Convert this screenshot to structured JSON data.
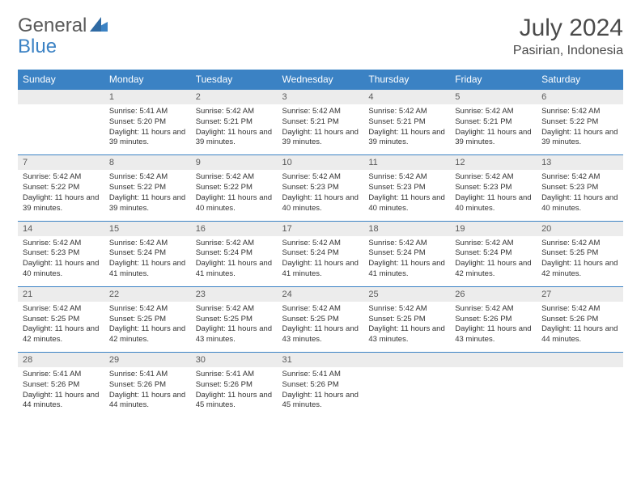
{
  "logo": {
    "part1": "General",
    "part2": "Blue"
  },
  "title": "July 2024",
  "location": "Pasirian, Indonesia",
  "colors": {
    "header_bg": "#3b82c4",
    "header_text": "#ffffff",
    "daynum_bg": "#ececec",
    "row_border": "#3b82c4",
    "logo_blue": "#3b82c4",
    "logo_grey": "#5a5a5a"
  },
  "day_headers": [
    "Sunday",
    "Monday",
    "Tuesday",
    "Wednesday",
    "Thursday",
    "Friday",
    "Saturday"
  ],
  "weeks": [
    [
      {
        "n": "",
        "sr": "",
        "ss": "",
        "dl": ""
      },
      {
        "n": "1",
        "sr": "Sunrise: 5:41 AM",
        "ss": "Sunset: 5:20 PM",
        "dl": "Daylight: 11 hours and 39 minutes."
      },
      {
        "n": "2",
        "sr": "Sunrise: 5:42 AM",
        "ss": "Sunset: 5:21 PM",
        "dl": "Daylight: 11 hours and 39 minutes."
      },
      {
        "n": "3",
        "sr": "Sunrise: 5:42 AM",
        "ss": "Sunset: 5:21 PM",
        "dl": "Daylight: 11 hours and 39 minutes."
      },
      {
        "n": "4",
        "sr": "Sunrise: 5:42 AM",
        "ss": "Sunset: 5:21 PM",
        "dl": "Daylight: 11 hours and 39 minutes."
      },
      {
        "n": "5",
        "sr": "Sunrise: 5:42 AM",
        "ss": "Sunset: 5:21 PM",
        "dl": "Daylight: 11 hours and 39 minutes."
      },
      {
        "n": "6",
        "sr": "Sunrise: 5:42 AM",
        "ss": "Sunset: 5:22 PM",
        "dl": "Daylight: 11 hours and 39 minutes."
      }
    ],
    [
      {
        "n": "7",
        "sr": "Sunrise: 5:42 AM",
        "ss": "Sunset: 5:22 PM",
        "dl": "Daylight: 11 hours and 39 minutes."
      },
      {
        "n": "8",
        "sr": "Sunrise: 5:42 AM",
        "ss": "Sunset: 5:22 PM",
        "dl": "Daylight: 11 hours and 39 minutes."
      },
      {
        "n": "9",
        "sr": "Sunrise: 5:42 AM",
        "ss": "Sunset: 5:22 PM",
        "dl": "Daylight: 11 hours and 40 minutes."
      },
      {
        "n": "10",
        "sr": "Sunrise: 5:42 AM",
        "ss": "Sunset: 5:23 PM",
        "dl": "Daylight: 11 hours and 40 minutes."
      },
      {
        "n": "11",
        "sr": "Sunrise: 5:42 AM",
        "ss": "Sunset: 5:23 PM",
        "dl": "Daylight: 11 hours and 40 minutes."
      },
      {
        "n": "12",
        "sr": "Sunrise: 5:42 AM",
        "ss": "Sunset: 5:23 PM",
        "dl": "Daylight: 11 hours and 40 minutes."
      },
      {
        "n": "13",
        "sr": "Sunrise: 5:42 AM",
        "ss": "Sunset: 5:23 PM",
        "dl": "Daylight: 11 hours and 40 minutes."
      }
    ],
    [
      {
        "n": "14",
        "sr": "Sunrise: 5:42 AM",
        "ss": "Sunset: 5:23 PM",
        "dl": "Daylight: 11 hours and 40 minutes."
      },
      {
        "n": "15",
        "sr": "Sunrise: 5:42 AM",
        "ss": "Sunset: 5:24 PM",
        "dl": "Daylight: 11 hours and 41 minutes."
      },
      {
        "n": "16",
        "sr": "Sunrise: 5:42 AM",
        "ss": "Sunset: 5:24 PM",
        "dl": "Daylight: 11 hours and 41 minutes."
      },
      {
        "n": "17",
        "sr": "Sunrise: 5:42 AM",
        "ss": "Sunset: 5:24 PM",
        "dl": "Daylight: 11 hours and 41 minutes."
      },
      {
        "n": "18",
        "sr": "Sunrise: 5:42 AM",
        "ss": "Sunset: 5:24 PM",
        "dl": "Daylight: 11 hours and 41 minutes."
      },
      {
        "n": "19",
        "sr": "Sunrise: 5:42 AM",
        "ss": "Sunset: 5:24 PM",
        "dl": "Daylight: 11 hours and 42 minutes."
      },
      {
        "n": "20",
        "sr": "Sunrise: 5:42 AM",
        "ss": "Sunset: 5:25 PM",
        "dl": "Daylight: 11 hours and 42 minutes."
      }
    ],
    [
      {
        "n": "21",
        "sr": "Sunrise: 5:42 AM",
        "ss": "Sunset: 5:25 PM",
        "dl": "Daylight: 11 hours and 42 minutes."
      },
      {
        "n": "22",
        "sr": "Sunrise: 5:42 AM",
        "ss": "Sunset: 5:25 PM",
        "dl": "Daylight: 11 hours and 42 minutes."
      },
      {
        "n": "23",
        "sr": "Sunrise: 5:42 AM",
        "ss": "Sunset: 5:25 PM",
        "dl": "Daylight: 11 hours and 43 minutes."
      },
      {
        "n": "24",
        "sr": "Sunrise: 5:42 AM",
        "ss": "Sunset: 5:25 PM",
        "dl": "Daylight: 11 hours and 43 minutes."
      },
      {
        "n": "25",
        "sr": "Sunrise: 5:42 AM",
        "ss": "Sunset: 5:25 PM",
        "dl": "Daylight: 11 hours and 43 minutes."
      },
      {
        "n": "26",
        "sr": "Sunrise: 5:42 AM",
        "ss": "Sunset: 5:26 PM",
        "dl": "Daylight: 11 hours and 43 minutes."
      },
      {
        "n": "27",
        "sr": "Sunrise: 5:42 AM",
        "ss": "Sunset: 5:26 PM",
        "dl": "Daylight: 11 hours and 44 minutes."
      }
    ],
    [
      {
        "n": "28",
        "sr": "Sunrise: 5:41 AM",
        "ss": "Sunset: 5:26 PM",
        "dl": "Daylight: 11 hours and 44 minutes."
      },
      {
        "n": "29",
        "sr": "Sunrise: 5:41 AM",
        "ss": "Sunset: 5:26 PM",
        "dl": "Daylight: 11 hours and 44 minutes."
      },
      {
        "n": "30",
        "sr": "Sunrise: 5:41 AM",
        "ss": "Sunset: 5:26 PM",
        "dl": "Daylight: 11 hours and 45 minutes."
      },
      {
        "n": "31",
        "sr": "Sunrise: 5:41 AM",
        "ss": "Sunset: 5:26 PM",
        "dl": "Daylight: 11 hours and 45 minutes."
      },
      {
        "n": "",
        "sr": "",
        "ss": "",
        "dl": ""
      },
      {
        "n": "",
        "sr": "",
        "ss": "",
        "dl": ""
      },
      {
        "n": "",
        "sr": "",
        "ss": "",
        "dl": ""
      }
    ]
  ]
}
